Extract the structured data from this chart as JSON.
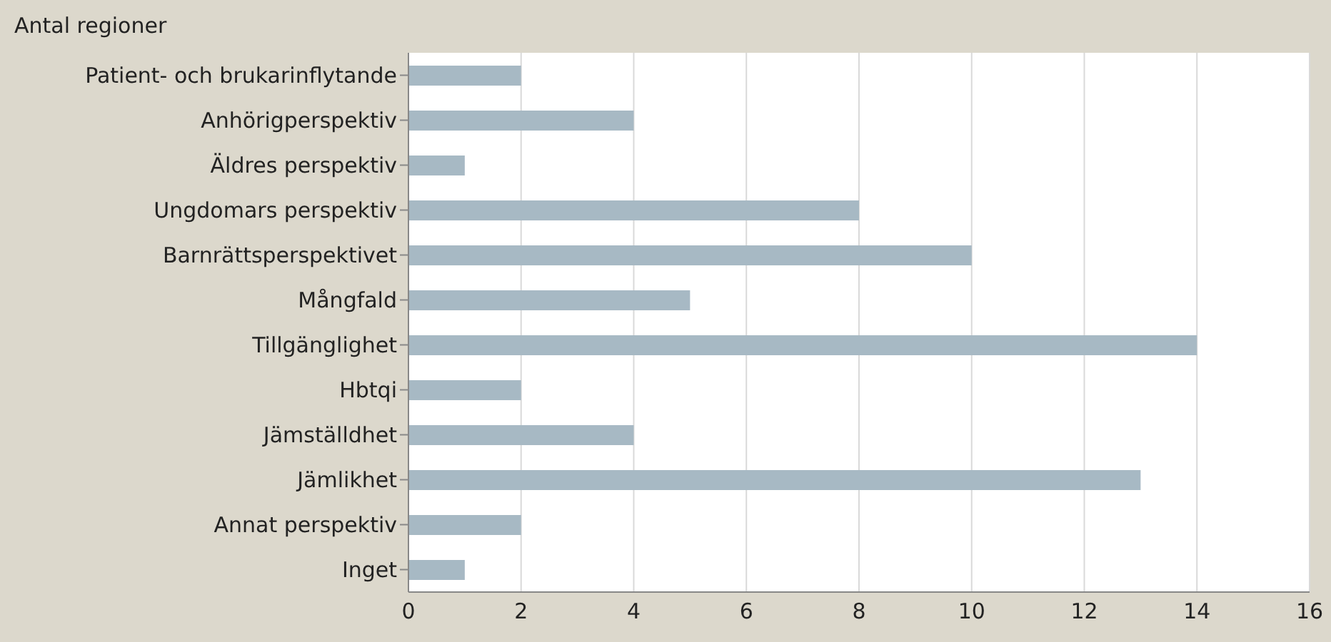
{
  "chart_data": {
    "type": "bar",
    "orientation": "horizontal",
    "title": "Antal regioner",
    "categories": [
      "Patient- och brukarinflytande",
      "Anhörigperspektiv",
      "Äldres perspektiv",
      "Ungdomars perspektiv",
      "Barnrättsperspektivet",
      "Mångfald",
      "Tillgänglighet",
      "Hbtqi",
      "Jämställdhet",
      "Jämlikhet",
      "Annat perspektiv",
      "Inget"
    ],
    "values": [
      2,
      4,
      1,
      8,
      10,
      5,
      14,
      2,
      4,
      13,
      2,
      1
    ],
    "color": "#a7b9c4",
    "xlim": [
      0,
      16
    ],
    "xticks": [
      0,
      2,
      4,
      6,
      8,
      10,
      12,
      14,
      16
    ],
    "grid": "x"
  }
}
